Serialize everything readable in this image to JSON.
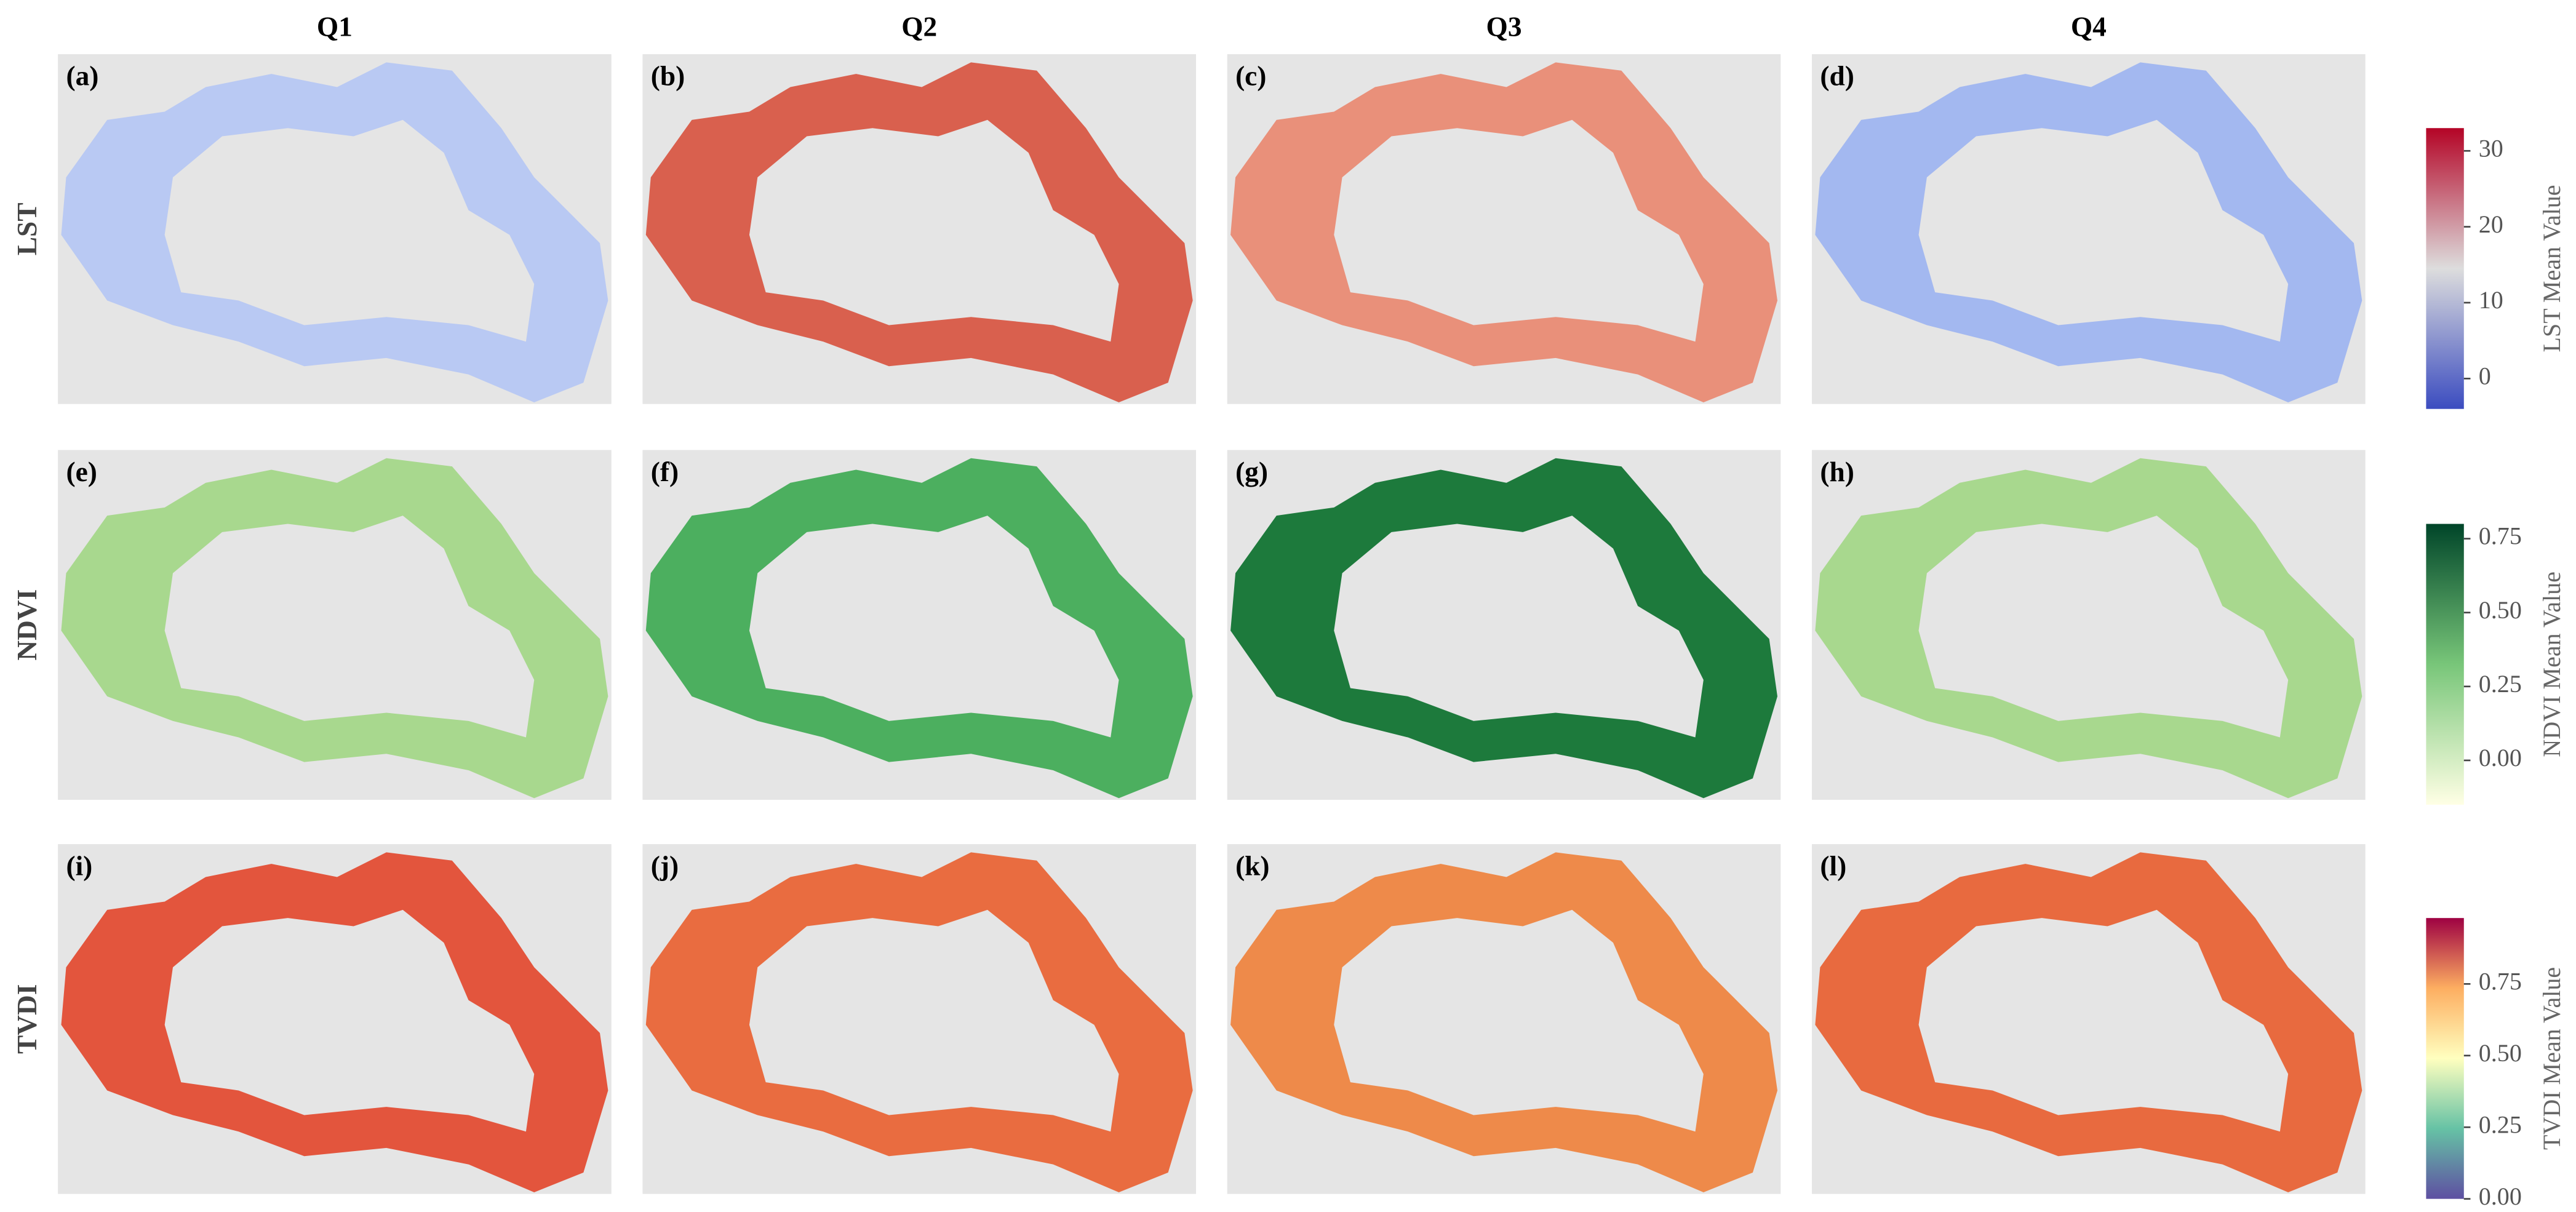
{
  "columns": [
    "Q1",
    "Q2",
    "Q3",
    "Q4"
  ],
  "rows": [
    {
      "label": "LST",
      "panels": [
        {
          "label": "(a)",
          "color": "#b9c9f3"
        },
        {
          "label": "(b)",
          "color": "#d9604e"
        },
        {
          "label": "(c)",
          "color": "#e9907a"
        },
        {
          "label": "(d)",
          "color": "#a3b8f0"
        }
      ],
      "colorbar": {
        "label": "LST Mean Value",
        "lim": [
          -4,
          33
        ],
        "ticks": [
          0,
          10,
          20,
          30
        ],
        "colors": [
          "#3b4cc0",
          "#dddddd",
          "#b40426"
        ]
      }
    },
    {
      "label": "NDVI",
      "panels": [
        {
          "label": "(e)",
          "color": "#a8d88e"
        },
        {
          "label": "(f)",
          "color": "#4caf5f"
        },
        {
          "label": "(g)",
          "color": "#1d7a3c"
        },
        {
          "label": "(h)",
          "color": "#a8d88e"
        }
      ],
      "colorbar": {
        "label": "NDVI Mean Value",
        "lim": [
          -0.15,
          0.8
        ],
        "ticks": [
          {
            "value": 0,
            "label": "0.00"
          },
          {
            "value": 0.25,
            "label": "0.25"
          },
          {
            "value": 0.5,
            "label": "0.50"
          },
          {
            "value": 0.75,
            "label": "0.75"
          }
        ],
        "colors": [
          "#ffffe5",
          "#78c679",
          "#004529"
        ]
      }
    },
    {
      "label": "TVDI",
      "panels": [
        {
          "label": "(i)",
          "color": "#e3553d"
        },
        {
          "label": "(j)",
          "color": "#e96c40"
        },
        {
          "label": "(k)",
          "color": "#ee8a4a"
        },
        {
          "label": "(l)",
          "color": "#e86a3f"
        }
      ],
      "colorbar": {
        "label": "TVDI Mean Value",
        "lim": [
          0,
          0.98
        ],
        "ticks": [
          {
            "value": 0,
            "label": "0.00"
          },
          {
            "value": 0.25,
            "label": "0.25"
          },
          {
            "value": 0.5,
            "label": "0.50"
          },
          {
            "value": 0.75,
            "label": "0.75"
          }
        ],
        "colors": [
          "#5e4fa2",
          "#66c2a5",
          "#ffffbf",
          "#fdae61",
          "#9e0142"
        ]
      }
    }
  ]
}
